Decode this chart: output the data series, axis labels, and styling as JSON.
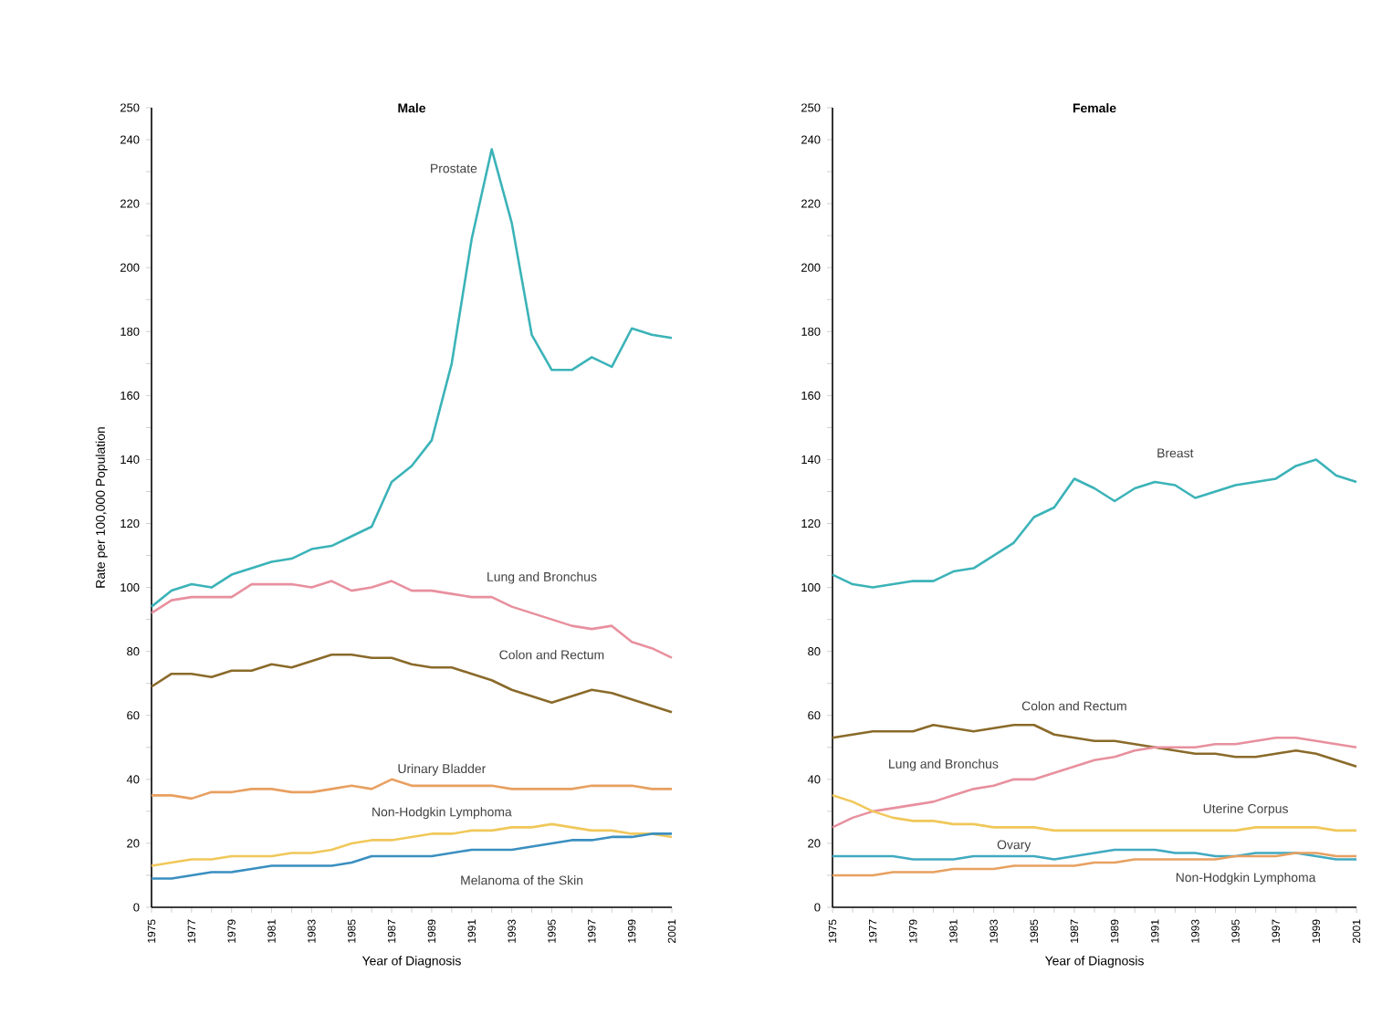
{
  "chart_data": [
    {
      "type": "line",
      "title": "Male",
      "xlabel": "Year of Diagnosis",
      "ylabel": "Rate per 100,000 Population",
      "xlim": [
        1975,
        2001
      ],
      "ylim": [
        0,
        250
      ],
      "x": [
        1975,
        1976,
        1977,
        1978,
        1979,
        1980,
        1981,
        1982,
        1983,
        1984,
        1985,
        1986,
        1987,
        1988,
        1989,
        1990,
        1991,
        1992,
        1993,
        1994,
        1995,
        1996,
        1997,
        1998,
        1999,
        2000,
        2001
      ],
      "xticks": [
        1975,
        {
          "value": 1976,
          "label": null
        },
        1977,
        {
          "value": 1978,
          "label": null
        },
        1979,
        {
          "value": 1980,
          "label": null
        },
        1981,
        {
          "value": 1982,
          "label": null
        },
        1983,
        {
          "value": 1984,
          "label": null
        },
        1985,
        {
          "value": 1986,
          "label": null
        },
        1987,
        {
          "value": 1988,
          "label": null
        },
        1989,
        {
          "value": 1990,
          "label": null
        },
        1991,
        {
          "value": 1992,
          "label": null
        },
        1993,
        {
          "value": 1994,
          "label": null
        },
        1995,
        {
          "value": 1996,
          "label": null
        },
        1997,
        {
          "value": 1998,
          "label": null
        },
        1999,
        {
          "value": 2000,
          "label": null
        },
        2001
      ],
      "yticks": [
        0,
        {
          "value": 10,
          "label": null
        },
        20,
        {
          "value": 30,
          "label": null
        },
        40,
        {
          "value": 50,
          "label": null
        },
        60,
        {
          "value": 70,
          "label": null
        },
        80,
        {
          "value": 90,
          "label": null
        },
        100,
        {
          "value": 110,
          "label": null
        },
        120,
        {
          "value": 130,
          "label": null
        },
        140,
        {
          "value": 150,
          "label": null
        },
        160,
        {
          "value": 170,
          "label": null
        },
        180,
        {
          "value": 190,
          "label": null
        },
        200,
        {
          "value": 210,
          "label": null
        },
        220,
        {
          "value": 230,
          "label": null
        },
        240,
        250
      ],
      "series": [
        {
          "name": "Prostate",
          "color": "#3bb3b8",
          "values": [
            94,
            99,
            101,
            100,
            104,
            106,
            108,
            109,
            112,
            113,
            116,
            119,
            133,
            138,
            146,
            170,
            209,
            237,
            214,
            179,
            168,
            168,
            172,
            169,
            181,
            179,
            178
          ]
        },
        {
          "name": "Lung and Bronchus",
          "color": "#e8909e",
          "values": [
            92,
            96,
            97,
            97,
            97,
            101,
            101,
            101,
            100,
            102,
            99,
            100,
            102,
            99,
            99,
            98,
            97,
            97,
            94,
            92,
            90,
            88,
            87,
            88,
            83,
            81,
            78
          ]
        },
        {
          "name": "Colon and Rectum",
          "color": "#8a6a2a",
          "values": [
            69,
            73,
            73,
            72,
            74,
            74,
            76,
            75,
            77,
            79,
            79,
            78,
            78,
            76,
            75,
            75,
            73,
            71,
            68,
            66,
            64,
            66,
            68,
            67,
            65,
            63,
            61
          ]
        },
        {
          "name": "Urinary Bladder",
          "color": "#e8a060",
          "values": [
            35,
            35,
            34,
            36,
            36,
            37,
            37,
            36,
            36,
            37,
            38,
            37,
            40,
            38,
            38,
            38,
            38,
            38,
            37,
            37,
            37,
            37,
            38,
            38,
            38,
            37,
            37
          ]
        },
        {
          "name": "Non-Hodgkin Lymphoma",
          "color": "#f0c85a",
          "values": [
            13,
            14,
            15,
            15,
            16,
            16,
            16,
            17,
            17,
            18,
            20,
            21,
            21,
            22,
            23,
            23,
            24,
            24,
            25,
            25,
            26,
            25,
            24,
            24,
            23,
            23,
            22
          ]
        },
        {
          "name": "Melanoma of the Skin",
          "color": "#3a8fc0",
          "values": [
            9,
            9,
            10,
            11,
            11,
            12,
            13,
            13,
            13,
            13,
            14,
            16,
            16,
            16,
            16,
            17,
            18,
            18,
            18,
            19,
            20,
            21,
            21,
            22,
            22,
            23,
            23
          ]
        }
      ]
    },
    {
      "type": "line",
      "title": "Female",
      "xlabel": "Year of Diagnosis",
      "xlim": [
        1975,
        2001
      ],
      "ylim": [
        0,
        250
      ],
      "x": [
        1975,
        1976,
        1977,
        1978,
        1979,
        1980,
        1981,
        1982,
        1983,
        1984,
        1985,
        1986,
        1987,
        1988,
        1989,
        1990,
        1991,
        1992,
        1993,
        1994,
        1995,
        1996,
        1997,
        1998,
        1999,
        2000,
        2001
      ],
      "xticks": [
        1975,
        {
          "value": 1976,
          "label": null
        },
        1977,
        {
          "value": 1978,
          "label": null
        },
        1979,
        {
          "value": 1980,
          "label": null
        },
        1981,
        {
          "value": 1982,
          "label": null
        },
        1983,
        {
          "value": 1984,
          "label": null
        },
        1985,
        {
          "value": 1986,
          "label": null
        },
        1987,
        {
          "value": 1988,
          "label": null
        },
        1989,
        {
          "value": 1990,
          "label": null
        },
        1991,
        {
          "value": 1992,
          "label": null
        },
        1993,
        {
          "value": 1994,
          "label": null
        },
        1995,
        {
          "value": 1996,
          "label": null
        },
        1997,
        {
          "value": 1998,
          "label": null
        },
        1999,
        {
          "value": 2000,
          "label": null
        },
        2001
      ],
      "yticks": [
        0,
        {
          "value": 10,
          "label": null
        },
        20,
        {
          "value": 30,
          "label": null
        },
        40,
        {
          "value": 50,
          "label": null
        },
        60,
        {
          "value": 70,
          "label": null
        },
        80,
        {
          "value": 90,
          "label": null
        },
        100,
        {
          "value": 110,
          "label": null
        },
        120,
        {
          "value": 130,
          "label": null
        },
        140,
        {
          "value": 150,
          "label": null
        },
        160,
        {
          "value": 170,
          "label": null
        },
        180,
        {
          "value": 190,
          "label": null
        },
        200,
        {
          "value": 210,
          "label": null
        },
        220,
        {
          "value": 230,
          "label": null
        },
        240,
        250
      ],
      "series": [
        {
          "name": "Breast",
          "color": "#3bb3b8",
          "values": [
            104,
            101,
            100,
            101,
            102,
            102,
            105,
            106,
            110,
            114,
            122,
            125,
            134,
            131,
            127,
            131,
            133,
            132,
            128,
            130,
            132,
            133,
            134,
            138,
            140,
            135,
            133
          ]
        },
        {
          "name": "Colon and Rectum",
          "color": "#8a6a2a",
          "values": [
            53,
            54,
            55,
            55,
            55,
            57,
            56,
            55,
            56,
            57,
            57,
            54,
            53,
            52,
            52,
            51,
            50,
            49,
            48,
            48,
            47,
            47,
            48,
            49,
            48,
            46,
            44
          ]
        },
        {
          "name": "Lung and Bronchus",
          "color": "#e8909e",
          "values": [
            25,
            28,
            30,
            31,
            32,
            33,
            35,
            37,
            38,
            40,
            40,
            42,
            44,
            46,
            47,
            49,
            50,
            50,
            50,
            51,
            51,
            52,
            53,
            53,
            52,
            51,
            50
          ]
        },
        {
          "name": "Uterine Corpus",
          "color": "#f0c85a",
          "values": [
            35,
            33,
            30,
            28,
            27,
            27,
            26,
            26,
            25,
            25,
            25,
            24,
            24,
            24,
            24,
            24,
            24,
            24,
            24,
            24,
            24,
            25,
            25,
            25,
            25,
            24,
            24
          ]
        },
        {
          "name": "Ovary",
          "color": "#40aac0",
          "values": [
            16,
            16,
            16,
            16,
            15,
            15,
            15,
            16,
            16,
            16,
            16,
            15,
            16,
            17,
            18,
            18,
            18,
            17,
            17,
            16,
            16,
            17,
            17,
            17,
            16,
            15,
            15
          ]
        },
        {
          "name": "Non-Hodgkin Lymphoma",
          "color": "#e8a060",
          "values": [
            10,
            10,
            10,
            11,
            11,
            11,
            12,
            12,
            12,
            13,
            13,
            13,
            13,
            14,
            14,
            15,
            15,
            15,
            15,
            15,
            16,
            16,
            16,
            17,
            17,
            16,
            16
          ]
        }
      ]
    }
  ]
}
